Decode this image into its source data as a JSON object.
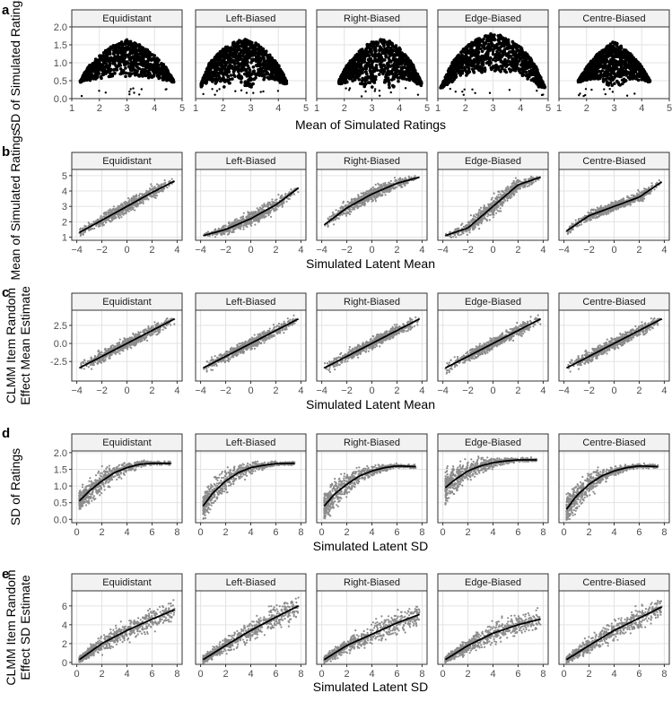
{
  "colors": {
    "point_dark": "#000000",
    "point_grey": "#8c8c8c",
    "line": "#000000",
    "strip_bg": "#f2f2f2",
    "grid": "#e3e3e3",
    "border": "#333333"
  },
  "facets": [
    "Equidistant",
    "Left-Biased",
    "Right-Biased",
    "Edge-Biased",
    "Centre-Biased"
  ],
  "chart_data": [
    {
      "panel": "a",
      "type": "scatter",
      "xlabel": "Mean of Simulated Ratings",
      "ylabel": "SD of Simulated Ratings",
      "xlim": [
        1,
        5
      ],
      "ylim": [
        0,
        2
      ],
      "xticks": [
        1,
        2,
        3,
        4,
        5
      ],
      "yticks": [
        0.0,
        0.5,
        1.0,
        1.5,
        2.0
      ],
      "ytick_labels": [
        "0.0",
        "0.5",
        "1.0",
        "1.5",
        "2.0"
      ],
      "series": [
        {
          "name": "Equidistant",
          "x": [
            1.3,
            1.6,
            2.0,
            2.4,
            2.8,
            3.0,
            3.2,
            3.6,
            4.0,
            4.4,
            4.7
          ],
          "y_low": [
            0.45,
            0.5,
            0.55,
            0.6,
            0.62,
            0.6,
            0.62,
            0.6,
            0.55,
            0.5,
            0.45
          ],
          "y_high": [
            0.5,
            0.9,
            1.2,
            1.45,
            1.6,
            1.65,
            1.6,
            1.45,
            1.2,
            0.9,
            0.5
          ]
        },
        {
          "name": "Left-Biased",
          "x": [
            1.2,
            1.5,
            2.0,
            2.4,
            2.8,
            3.2,
            3.6,
            4.0,
            4.3
          ],
          "y_low": [
            0.3,
            0.5,
            0.0,
            0.55,
            0.0,
            0.55,
            0.5,
            0.45,
            0.4
          ],
          "y_high": [
            0.45,
            1.0,
            1.4,
            1.6,
            1.65,
            1.55,
            1.3,
            0.95,
            0.5
          ]
        },
        {
          "name": "Right-Biased",
          "x": [
            1.8,
            2.1,
            2.5,
            2.9,
            3.3,
            3.7,
            4.1,
            4.5,
            4.8
          ],
          "y_low": [
            0.4,
            0.45,
            0.5,
            0.0,
            0.55,
            0.0,
            0.5,
            0.45,
            0.35
          ],
          "y_high": [
            0.5,
            0.95,
            1.3,
            1.55,
            1.65,
            1.6,
            1.35,
            0.95,
            0.45
          ]
        },
        {
          "name": "Edge-Biased",
          "x": [
            1.1,
            1.5,
            2.0,
            2.5,
            3.0,
            3.5,
            4.0,
            4.5,
            4.9
          ],
          "y_low": [
            0.1,
            0.45,
            0.6,
            0.7,
            0.75,
            0.7,
            0.6,
            0.45,
            0.1
          ],
          "y_high": [
            0.3,
            1.0,
            1.45,
            1.7,
            1.85,
            1.7,
            1.45,
            1.0,
            0.3
          ]
        },
        {
          "name": "Centre-Biased",
          "x": [
            1.7,
            2.0,
            2.4,
            2.8,
            3.0,
            3.2,
            3.6,
            4.0,
            4.3
          ],
          "y_low": [
            0.45,
            0.5,
            0.55,
            0.3,
            0.0,
            0.3,
            0.55,
            0.5,
            0.45
          ],
          "y_high": [
            0.5,
            0.9,
            1.25,
            1.5,
            1.6,
            1.5,
            1.25,
            0.9,
            0.5
          ]
        }
      ]
    },
    {
      "panel": "b",
      "type": "scatter",
      "xlabel": "Simulated Latent Mean",
      "ylabel": "Mean of Simulated Ratings",
      "xlim": [
        -4.4,
        4.4
      ],
      "ylim": [
        0.8,
        5.4
      ],
      "xticks": [
        -4,
        -2,
        0,
        2,
        4
      ],
      "yticks": [
        1,
        2,
        3,
        4,
        5
      ],
      "ytick_labels": [
        "1",
        "2",
        "3",
        "4",
        "5"
      ],
      "series": [
        {
          "name": "Equidistant",
          "x": [
            -3.8,
            -2,
            0,
            2,
            3.8
          ],
          "y": [
            1.3,
            2.1,
            3.0,
            3.9,
            4.65
          ],
          "spread": [
            0.2,
            0.35,
            0.4,
            0.35,
            0.2
          ]
        },
        {
          "name": "Left-Biased",
          "x": [
            -3.8,
            -2,
            0,
            2,
            3.8
          ],
          "y": [
            1.1,
            1.5,
            2.2,
            3.1,
            4.2
          ],
          "spread": [
            0.1,
            0.3,
            0.4,
            0.4,
            0.25
          ]
        },
        {
          "name": "Right-Biased",
          "x": [
            -3.8,
            -2,
            0,
            2,
            3.8
          ],
          "y": [
            1.8,
            2.9,
            3.8,
            4.5,
            4.9
          ],
          "spread": [
            0.25,
            0.4,
            0.4,
            0.3,
            0.1
          ]
        },
        {
          "name": "Edge-Biased",
          "x": [
            -3.8,
            -2,
            0,
            2,
            3.8
          ],
          "y": [
            1.1,
            1.6,
            3.0,
            4.4,
            4.9
          ],
          "spread": [
            0.1,
            0.4,
            0.6,
            0.4,
            0.1
          ]
        },
        {
          "name": "Centre-Biased",
          "x": [
            -3.8,
            -2,
            0,
            2,
            3.8
          ],
          "y": [
            1.4,
            2.4,
            3.0,
            3.6,
            4.6
          ],
          "spread": [
            0.2,
            0.3,
            0.25,
            0.3,
            0.2
          ]
        }
      ]
    },
    {
      "panel": "c",
      "type": "scatter",
      "xlabel": "Simulated Latent Mean",
      "ylabel": "CLMM Item Random Effect Mean Estimate",
      "ylabel_lines": [
        "CLMM Item Random",
        "Effect Mean Estimate"
      ],
      "xlim": [
        -4.4,
        4.4
      ],
      "ylim": [
        -5.2,
        4.6
      ],
      "xticks": [
        -4,
        -2,
        0,
        2,
        4
      ],
      "yticks": [
        -2.5,
        0.0,
        2.5
      ],
      "ytick_labels": [
        "-2.5",
        "0.0",
        "2.5"
      ],
      "series": [
        {
          "name": "Equidistant",
          "x": [
            -3.8,
            3.8
          ],
          "y": [
            -3.4,
            3.4
          ],
          "spread": [
            0.7,
            0.7
          ]
        },
        {
          "name": "Left-Biased",
          "x": [
            -3.8,
            3.8
          ],
          "y": [
            -3.4,
            3.4
          ],
          "spread": [
            0.7,
            0.7
          ]
        },
        {
          "name": "Right-Biased",
          "x": [
            -3.8,
            3.8
          ],
          "y": [
            -3.4,
            3.4
          ],
          "spread": [
            0.7,
            0.7
          ]
        },
        {
          "name": "Edge-Biased",
          "x": [
            -3.8,
            3.8
          ],
          "y": [
            -3.4,
            3.4
          ],
          "spread": [
            0.7,
            0.7
          ]
        },
        {
          "name": "Centre-Biased",
          "x": [
            -3.8,
            3.8
          ],
          "y": [
            -3.4,
            3.4
          ],
          "spread": [
            0.7,
            0.7
          ]
        }
      ]
    },
    {
      "panel": "d",
      "type": "scatter",
      "xlabel": "Simulated Latent SD",
      "ylabel": "SD of Ratings",
      "xlim": [
        -0.4,
        8.4
      ],
      "ylim": [
        -0.1,
        2.05
      ],
      "xticks": [
        0,
        2,
        4,
        6,
        8
      ],
      "yticks": [
        0.0,
        0.5,
        1.0,
        1.5,
        2.0
      ],
      "ytick_labels": [
        "0.0",
        "0.5",
        "1.0",
        "1.5",
        "2.0"
      ],
      "series": [
        {
          "name": "Equidistant",
          "x": [
            0.2,
            1,
            2,
            3,
            4,
            5,
            6,
            7.5
          ],
          "y": [
            0.55,
            0.85,
            1.15,
            1.4,
            1.55,
            1.65,
            1.68,
            1.68
          ],
          "spread": [
            0.25,
            0.3,
            0.3,
            0.2,
            0.15,
            0.1,
            0.05,
            0.05
          ]
        },
        {
          "name": "Left-Biased",
          "x": [
            0.2,
            1,
            2,
            3,
            4,
            5,
            6,
            7.5
          ],
          "y": [
            0.4,
            0.8,
            1.15,
            1.4,
            1.55,
            1.62,
            1.67,
            1.68
          ],
          "spread": [
            0.35,
            0.35,
            0.3,
            0.2,
            0.15,
            0.1,
            0.05,
            0.05
          ]
        },
        {
          "name": "Right-Biased",
          "x": [
            0.2,
            1,
            2,
            3,
            4,
            5,
            6,
            7.5
          ],
          "y": [
            0.4,
            0.75,
            1.05,
            1.3,
            1.45,
            1.55,
            1.6,
            1.58
          ],
          "spread": [
            0.35,
            0.35,
            0.3,
            0.2,
            0.15,
            0.1,
            0.05,
            0.05
          ]
        },
        {
          "name": "Edge-Biased",
          "x": [
            0.2,
            1,
            2,
            3,
            4,
            5,
            6,
            7.5
          ],
          "y": [
            0.95,
            1.2,
            1.45,
            1.6,
            1.7,
            1.75,
            1.78,
            1.78
          ],
          "spread": [
            0.4,
            0.35,
            0.25,
            0.2,
            0.12,
            0.08,
            0.05,
            0.05
          ]
        },
        {
          "name": "Centre-Biased",
          "x": [
            0.2,
            1,
            2,
            3,
            4,
            5,
            6,
            7.5
          ],
          "y": [
            0.3,
            0.7,
            1.05,
            1.3,
            1.45,
            1.55,
            1.6,
            1.58
          ],
          "spread": [
            0.35,
            0.35,
            0.3,
            0.2,
            0.15,
            0.1,
            0.05,
            0.05
          ]
        }
      ]
    },
    {
      "panel": "e",
      "type": "scatter",
      "xlabel": "Simulated Latent SD",
      "ylabel": "CLMM Item Random Effect SD Estimate",
      "ylabel_lines": [
        "CLMM Item Random",
        "Effect SD Estimate"
      ],
      "xlim": [
        -0.4,
        8.4
      ],
      "ylim": [
        -0.2,
        7.6
      ],
      "xticks": [
        0,
        2,
        4,
        6,
        8
      ],
      "yticks": [
        0,
        2,
        4,
        6
      ],
      "ytick_labels": [
        "0",
        "2",
        "4",
        "6"
      ],
      "series": [
        {
          "name": "Equidistant",
          "x": [
            0.2,
            2,
            4,
            6,
            7.8
          ],
          "y": [
            0.3,
            2.0,
            3.4,
            4.6,
            5.6
          ],
          "spread": [
            0.3,
            0.7,
            0.9,
            1.0,
            1.0
          ]
        },
        {
          "name": "Left-Biased",
          "x": [
            0.2,
            2,
            4,
            6,
            7.8
          ],
          "y": [
            0.3,
            1.8,
            3.4,
            4.8,
            6.0
          ],
          "spread": [
            0.3,
            0.7,
            0.9,
            1.0,
            1.0
          ]
        },
        {
          "name": "Right-Biased",
          "x": [
            0.2,
            2,
            4,
            6,
            7.8
          ],
          "y": [
            0.3,
            1.8,
            3.0,
            4.2,
            5.1
          ],
          "spread": [
            0.3,
            0.7,
            0.9,
            1.0,
            1.0
          ]
        },
        {
          "name": "Edge-Biased",
          "x": [
            0.2,
            2,
            4,
            6,
            7.8
          ],
          "y": [
            0.3,
            1.8,
            3.1,
            4.0,
            4.6
          ],
          "spread": [
            0.3,
            0.7,
            0.9,
            1.0,
            1.0
          ]
        },
        {
          "name": "Centre-Biased",
          "x": [
            0.2,
            2,
            4,
            6,
            7.8
          ],
          "y": [
            0.3,
            1.8,
            3.4,
            4.7,
            5.9
          ],
          "spread": [
            0.3,
            0.7,
            0.9,
            1.0,
            1.0
          ]
        }
      ]
    }
  ]
}
